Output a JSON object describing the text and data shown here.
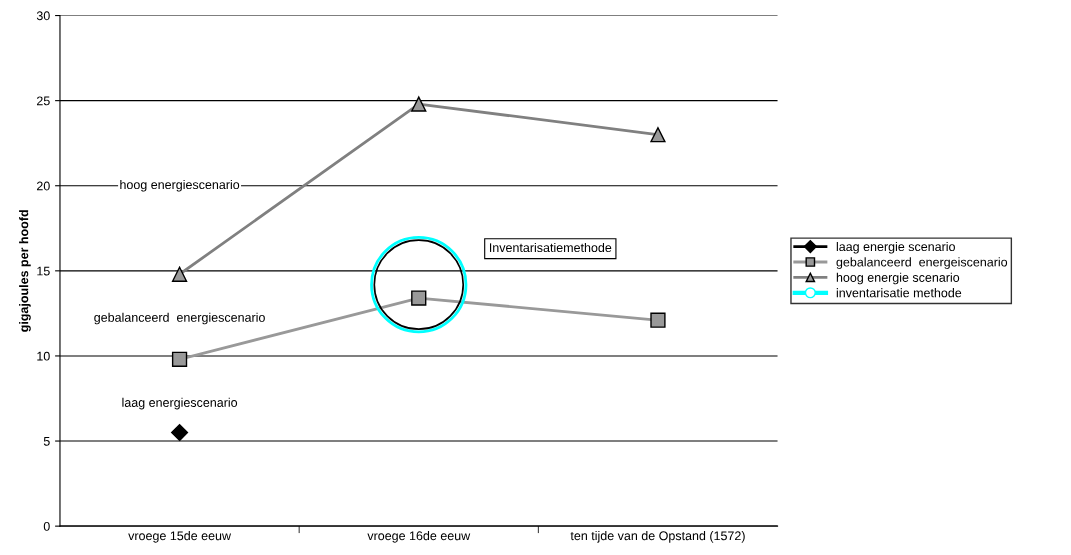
{
  "chart_data": {
    "type": "line",
    "ylabel": "gigajoules per hoofd",
    "categories": [
      "vroege 15de eeuw",
      "vroege 16de eeuw",
      "ten tijde van de Opstand (1572)"
    ],
    "series": [
      {
        "name": "laag energie scenario",
        "color": "#000000",
        "marker": "diamond",
        "values": [
          5.5,
          null,
          null
        ]
      },
      {
        "name": "gebalanceerd  energeiscenario",
        "color": "#999999",
        "marker": "square",
        "values": [
          9.8,
          13.4,
          12.1
        ]
      },
      {
        "name": "hoog energie scenario",
        "color": "#808080",
        "marker": "triangle",
        "values": [
          14.8,
          24.8,
          23.0
        ]
      },
      {
        "name": "inventarisatie methode",
        "color": "#00ffff",
        "marker": "circle",
        "values": [
          null,
          null,
          null
        ]
      }
    ],
    "annotations": [
      "hoog energiescenario",
      "gebalanceerd  energiescenario",
      "laag energiescenario",
      "Inventarisatiemethode"
    ],
    "ylim": [
      0,
      30
    ],
    "yticks": [
      0,
      5,
      10,
      15,
      20,
      25,
      30
    ],
    "grid": "y",
    "legend": "right"
  }
}
